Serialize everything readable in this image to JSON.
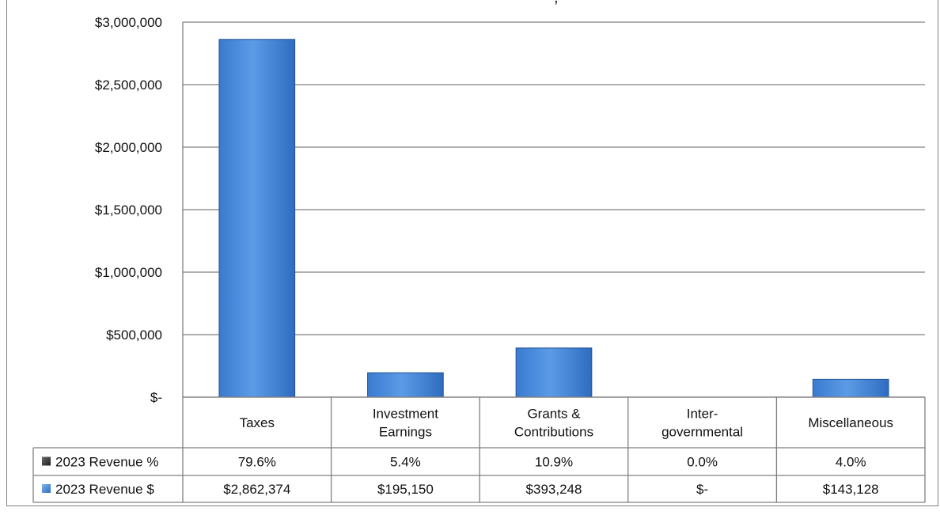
{
  "chart_data": {
    "type": "bar",
    "title": "",
    "title_fragment": ",",
    "categories": [
      [
        "Taxes"
      ],
      [
        "Investment",
        "Earnings"
      ],
      [
        "Grants &",
        "Contributions"
      ],
      [
        "Inter-",
        "governmental"
      ],
      [
        "Miscellaneous"
      ]
    ],
    "y_ticks": [
      "$-",
      "$500,000",
      "$1,000,000",
      "$1,500,000",
      "$2,000,000",
      "$2,500,000",
      "$3,000,000"
    ],
    "ylim": [
      0,
      3000000
    ],
    "grid": true,
    "series": [
      {
        "name": "2023 Revenue $",
        "values": [
          2862374,
          195150,
          393248,
          0,
          143128
        ],
        "labels": [
          "$2,862,374",
          "$195,150",
          "$393,248",
          "$-",
          "$143,128"
        ],
        "color": "#4f8fdb",
        "plotted": true
      },
      {
        "name": "2023 Revenue %",
        "values": [
          79.6,
          5.4,
          10.9,
          0.0,
          4.0
        ],
        "labels": [
          "79.6%",
          "5.4%",
          "10.9%",
          "0.0%",
          "4.0%"
        ],
        "color": "#404040",
        "plotted": false
      }
    ]
  }
}
